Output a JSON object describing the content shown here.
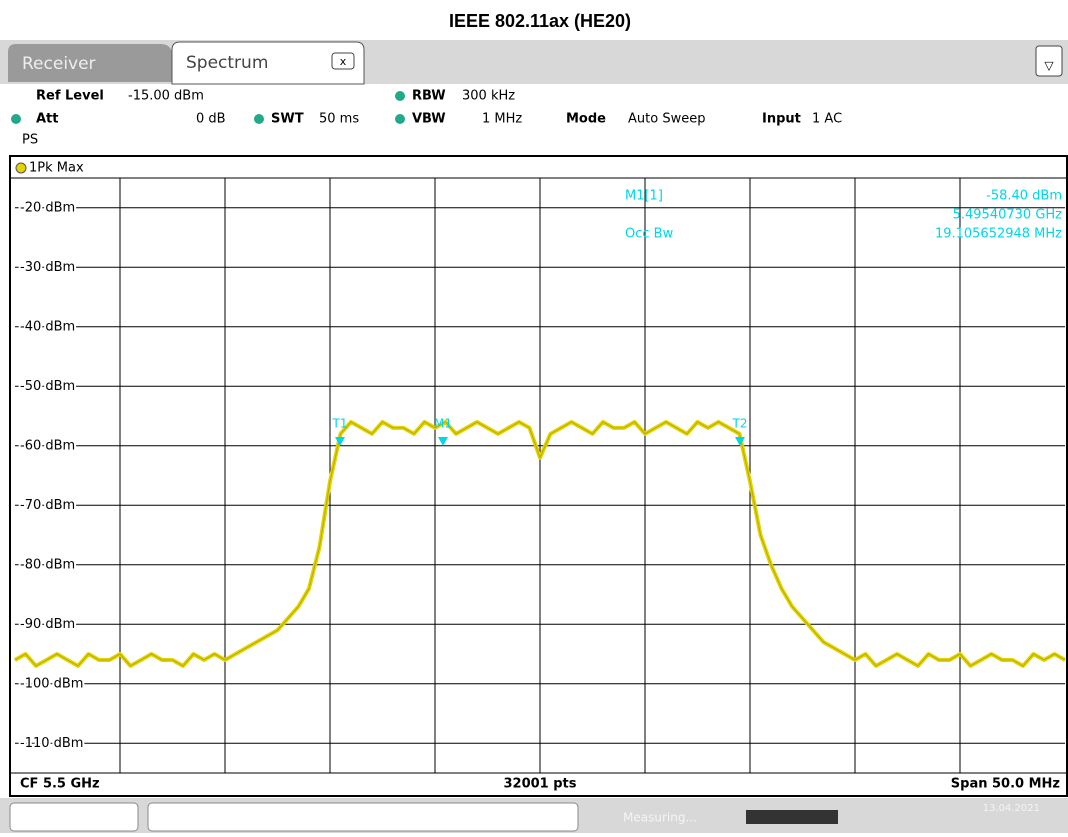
{
  "title": "IEEE 802.11ax (HE20)",
  "tabs": [
    "Receiver",
    "Spectrum"
  ],
  "settings": {
    "ref_level_label": "Ref Level",
    "ref_level": "-15.00 dBm",
    "rbw_label": "RBW",
    "rbw": "300 kHz",
    "att_label": "Att",
    "att": "0 dB",
    "swt_label": "SWT",
    "swt": "50 ms",
    "vbw_label": "VBW",
    "vbw": "1 MHz",
    "mode_label": "Mode",
    "mode": "Auto Sweep",
    "input_label": "Input",
    "input": "1 AC",
    "ps": "PS"
  },
  "trace_label": "1Pk Max",
  "marker_info": {
    "name": "M1[1]",
    "level": "-58.40 dBm",
    "freq": "5.49540730 GHz",
    "occ_label": "Occ Bw",
    "occ": "19.105652948 MHz"
  },
  "markers": [
    "T1",
    "M1",
    "T2"
  ],
  "footer": {
    "cf": "CF 5.5 GHz",
    "pts": "32001 pts",
    "span": "Span 50.0 MHz"
  },
  "status": {
    "state": "Measuring...",
    "date": "13.04.2021"
  },
  "chart_data": {
    "type": "line",
    "color": "#e3d400",
    "ylim": [
      -115,
      -15
    ],
    "yticks": [
      {
        "value": -20,
        "label": "-20 dBm"
      },
      {
        "value": -30,
        "label": "-30 dBm"
      },
      {
        "value": -40,
        "label": "-40 dBm"
      },
      {
        "value": -50,
        "label": "-50 dBm"
      },
      {
        "value": -60,
        "label": "-60 dBm"
      },
      {
        "value": -70,
        "label": "-70 dBm"
      },
      {
        "value": -80,
        "label": "-80 dBm"
      },
      {
        "value": -90,
        "label": "-90 dBm"
      },
      {
        "value": -100,
        "label": "-100 dBm"
      },
      {
        "value": -110,
        "label": "-110 dBm"
      }
    ],
    "values": [
      -96,
      -95,
      -97,
      -96,
      -95,
      -96,
      -97,
      -95,
      -96,
      -96,
      -95,
      -97,
      -96,
      -95,
      -96,
      -96,
      -97,
      -95,
      -96,
      -95,
      -96,
      -95,
      -94,
      -93,
      -92,
      -91,
      -89,
      -87,
      -84,
      -77,
      -66,
      -58,
      -56,
      -57,
      -58,
      -56,
      -57,
      -57,
      -58,
      -56,
      -57,
      -56,
      -58,
      -57,
      -56,
      -57,
      -58,
      -57,
      -56,
      -57,
      -62,
      -58,
      -57,
      -56,
      -57,
      -58,
      -56,
      -57,
      -57,
      -56,
      -58,
      -57,
      -56,
      -57,
      -58,
      -56,
      -57,
      -56,
      -57,
      -58,
      -66,
      -75,
      -80,
      -84,
      -87,
      -89,
      -91,
      -93,
      -94,
      -95,
      -96,
      -95,
      -97,
      -96,
      -95,
      -96,
      -97,
      -95,
      -96,
      -96,
      -95,
      -97,
      -96,
      -95,
      -96,
      -96,
      -97,
      -95,
      -96,
      -95,
      -96
    ]
  }
}
